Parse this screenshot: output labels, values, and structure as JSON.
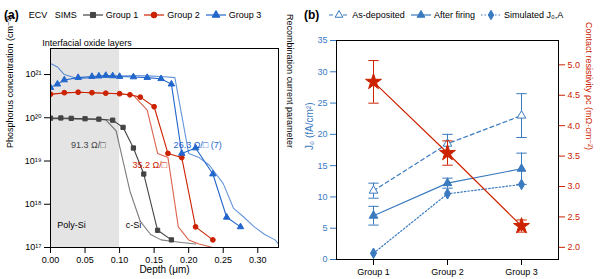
{
  "chart_data": [
    {
      "type": "line",
      "title": "(a)",
      "x_label": "Depth (μm)",
      "y_label": "Phosphorus concentration (cm⁻³)",
      "y2_label": "Recombination current parameter",
      "log": "y",
      "grid": false,
      "legend": "top",
      "legend_title": "ECV   SIMS",
      "xlim": [
        0.0,
        0.33
      ],
      "xticks": [
        {
          "value": 0,
          "label": "0.00"
        },
        0.05,
        {
          "value": 0.1,
          "label": "0.10"
        },
        0.15,
        {
          "value": 0.2,
          "label": "0.20"
        },
        0.25,
        {
          "value": 0.3,
          "label": "0.30"
        }
      ],
      "ylim": [
        1e+17,
        4e+21
      ],
      "yticks": [
        {
          "value": 1e+17,
          "label": "10¹⁷"
        },
        {
          "value": 1e+18,
          "label": "10¹⁸"
        },
        {
          "value": 1e+19,
          "label": "10¹⁹"
        },
        {
          "value": 1e+20,
          "label": "10²⁰"
        },
        {
          "value": 1e+21,
          "label": "10²¹"
        }
      ],
      "shaded": {
        "x": [
          0.0,
          0.1
        ],
        "color": "#d8d8d8"
      },
      "annotations": [
        {
          "text": "Interfacial oxide layers"
        },
        {
          "text": "Poly-Si"
        },
        {
          "text": "c-Si"
        },
        {
          "text": "91.3 Ω/□",
          "color": "#444444"
        },
        {
          "text": "35.2 Ω/□",
          "color": "#cc2200"
        },
        {
          "text": "26.3 Ω/□ (7)",
          "color": "#2266cc"
        }
      ],
      "series": [
        {
          "name": "Group 1",
          "color": "#444444",
          "marker": "square",
          "line_style": "solid",
          "x": [
            0.0,
            0.015,
            0.03,
            0.05,
            0.07,
            0.09,
            0.105,
            0.12,
            0.135,
            0.155,
            0.175
          ],
          "values": [
            9.8e+19,
            9.9e+19,
            9.7e+19,
            9.5e+19,
            9.3e+19,
            8.8e+19,
            6e+19,
            2e+19,
            5e+18,
            2.5e+17,
            1.5e+17
          ]
        },
        {
          "name": "Group 2",
          "color": "#cc2200",
          "marker": "circle",
          "line_style": "solid",
          "x": [
            0.0,
            0.02,
            0.04,
            0.06,
            0.08,
            0.1,
            0.115,
            0.13,
            0.15,
            0.17,
            0.19,
            0.21,
            0.235
          ],
          "values": [
            3.5e+20,
            3.8e+20,
            3.9e+20,
            3.8e+20,
            3.7e+20,
            3.6e+20,
            3.4e+20,
            3e+20,
            1.8e+20,
            1.5e+19,
            1.2e+19,
            3e+17,
            1.5e+17
          ]
        },
        {
          "name": "Group 3",
          "color": "#2266cc",
          "marker": "triangle",
          "line_style": "solid",
          "x": [
            0.0,
            0.01,
            0.02,
            0.04,
            0.06,
            0.07,
            0.08,
            0.09,
            0.1,
            0.12,
            0.14,
            0.16,
            0.175,
            0.19,
            0.21,
            0.235,
            0.255,
            0.275
          ],
          "values": [
            5e+20,
            6e+20,
            7.5e+20,
            8.5e+20,
            9e+20,
            9.2e+20,
            9.5e+20,
            9.3e+20,
            9e+20,
            8.8e+20,
            8.5e+20,
            8e+20,
            6e+20,
            1.5e+19,
            2e+19,
            5e+18,
            5e+17,
            3e+17
          ]
        },
        {
          "color": "#444444",
          "marker": "none",
          "line_style": "solid",
          "x": [
            0.0,
            0.01,
            0.02,
            0.04,
            0.06,
            0.08,
            0.095,
            0.105,
            0.115,
            0.13,
            0.145,
            0.16,
            0.175,
            0.19,
            0.21
          ],
          "values": [
            9.5e+19,
            9.6e+19,
            9.5e+19,
            9.3e+19,
            9.2e+19,
            9e+19,
            5e+19,
            1e+19,
            2e+18,
            4e+17,
            2e+17,
            1.5e+17,
            1.4e+17,
            1.3e+17,
            1.2e+17
          ]
        },
        {
          "color": "#cc2200",
          "marker": "none",
          "line_style": "solid",
          "x": [
            0.0,
            0.02,
            0.04,
            0.06,
            0.08,
            0.1,
            0.12,
            0.14,
            0.155,
            0.17,
            0.185,
            0.2,
            0.215,
            0.235
          ],
          "values": [
            3.5e+20,
            3.7e+20,
            3.9e+20,
            3.8e+20,
            3.7e+20,
            3.6e+20,
            3.3e+20,
            1.5e+20,
            1.5e+19,
            1.2e+19,
            3e+17,
            1.5e+17,
            1.2e+17,
            1e+17
          ]
        },
        {
          "color": "#2266cc",
          "marker": "none",
          "line_style": "solid",
          "x": [
            0.0,
            0.01,
            0.02,
            0.04,
            0.06,
            0.08,
            0.1,
            0.12,
            0.14,
            0.16,
            0.18,
            0.2,
            0.215,
            0.23,
            0.25,
            0.265,
            0.28,
            0.295,
            0.31,
            0.325,
            0.33
          ],
          "values": [
            1.8e+21,
            1.5e+21,
            1e+21,
            8e+20,
            8.5e+20,
            9e+20,
            9.2e+20,
            9.5e+20,
            9.3e+20,
            9e+20,
            8.5e+20,
            1.5e+19,
            1.2e+19,
            8e+18,
            3e+18,
            8e+17,
            5e+17,
            3e+17,
            2e+17,
            1.5e+17,
            1.2e+17
          ]
        }
      ]
    },
    {
      "type": "line",
      "title": "(b)",
      "categories": [
        "Group 1",
        "Group 2",
        "Group 3"
      ],
      "y_label": "J₀ (fA/cm²)",
      "y2_label": "Contact resistivity ρc (mΩ·cm⁻²)",
      "grid": false,
      "legend": "top",
      "ylim": [
        0,
        35
      ],
      "yticks": [
        0,
        5,
        10,
        15,
        20,
        25,
        30,
        35
      ],
      "y2lim": [
        1.8,
        5.4
      ],
      "y2ticks": [
        {
          "value": 2.0,
          "label": "2.0"
        },
        2.5,
        {
          "value": 3.0,
          "label": "3.0"
        },
        3.5,
        {
          "value": 4.0,
          "label": "4.0"
        },
        4.5,
        {
          "value": 5.0,
          "label": "5.0"
        }
      ],
      "series": [
        {
          "name": "As-deposited",
          "color": "#3a7abf",
          "marker": "triangle_open",
          "line_style": "dashed",
          "values": [
            11.0,
            18.5,
            23.0
          ],
          "error": [
            1.2,
            1.5,
            3.5
          ]
        },
        {
          "name": "After firing",
          "color": "#3a7abf",
          "marker": "triangle",
          "line_style": "solid",
          "values": [
            7.0,
            12.2,
            14.5
          ],
          "error": [
            1.5,
            0.8,
            2.5
          ]
        },
        {
          "name": "Simulated J₀,A",
          "color": "#3a7abf",
          "marker": "diamond",
          "line_style": "dotted",
          "values": [
            1.0,
            10.5,
            12.0
          ]
        },
        {
          "color": "#cc2200",
          "marker": "star",
          "line_style": "solid",
          "axis": "y2",
          "values": [
            4.72,
            3.55,
            2.35
          ],
          "error": [
            0.35,
            0.2,
            0.1
          ]
        }
      ]
    }
  ]
}
